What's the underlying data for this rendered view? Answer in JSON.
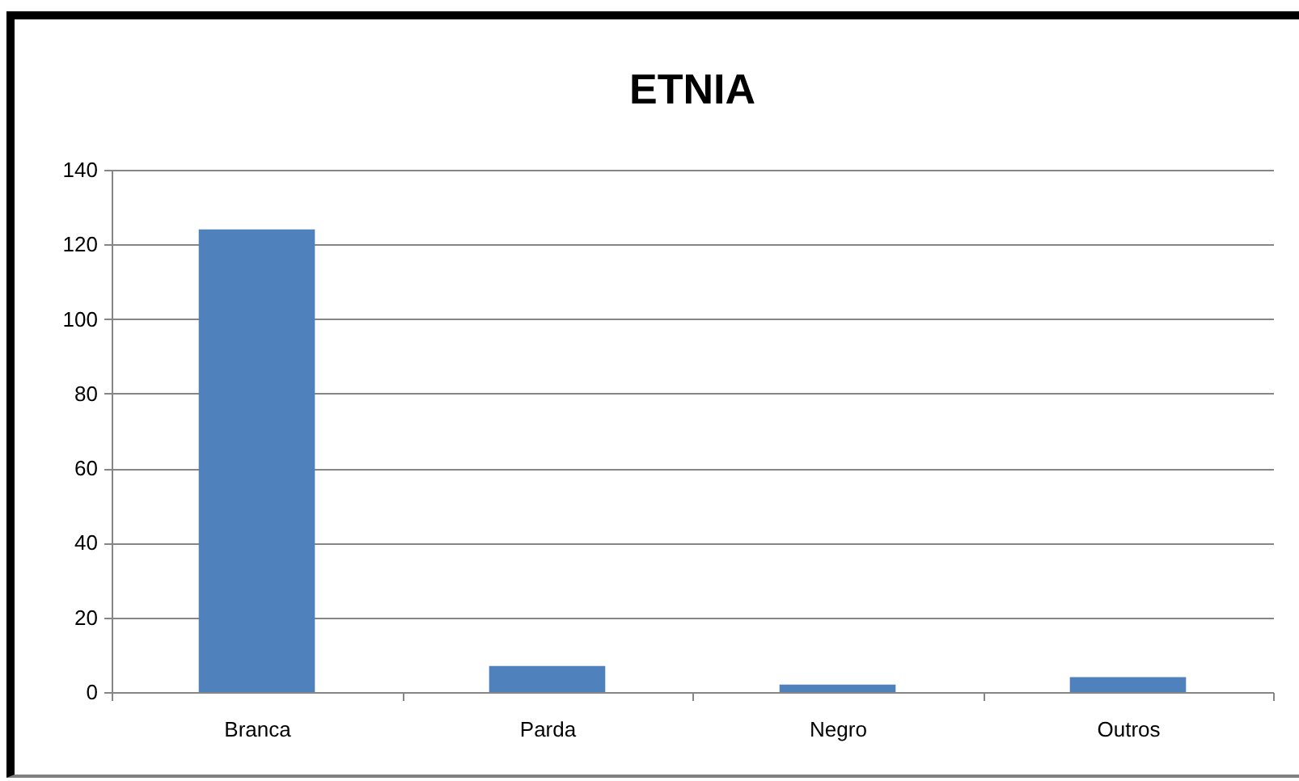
{
  "chart_data": {
    "type": "bar",
    "title": "ETNIA",
    "categories": [
      "Branca",
      "Parda",
      "Negro",
      "Outros"
    ],
    "values": [
      124,
      7,
      2,
      4
    ],
    "color": "#4f81bd",
    "ylim": [
      0,
      140
    ],
    "yticks": [
      0,
      20,
      40,
      60,
      80,
      100,
      120,
      140
    ],
    "grid": "y"
  }
}
